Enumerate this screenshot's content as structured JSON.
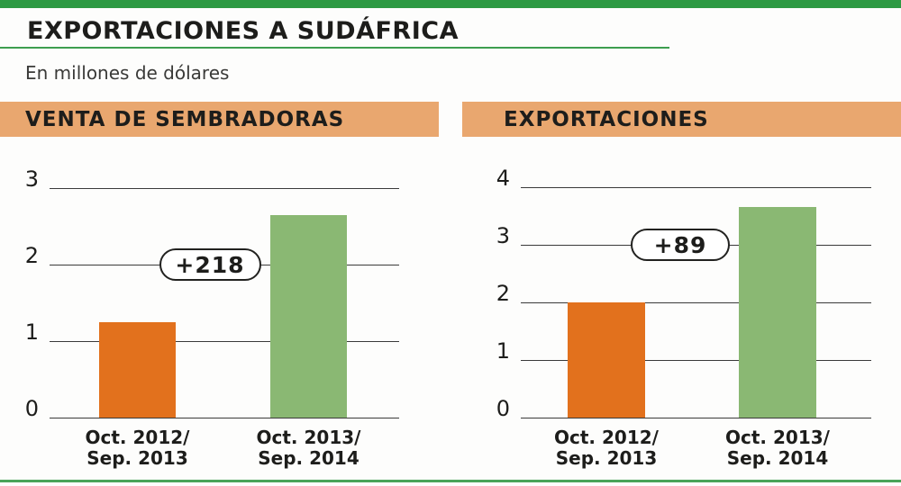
{
  "header": {
    "title": "EXPORTACIONES A SUDÁFRICA",
    "subtitle": "En millones de dólares"
  },
  "panels": [
    {
      "label": "VENTA DE SEMBRADORAS"
    },
    {
      "label": "EXPORTACIONES"
    }
  ],
  "colors": {
    "top_bar": "#2e9a44",
    "title_underline": "#3d9e4f",
    "panel_header_bg": "#e9a76f",
    "bar_orange": "#e2711d",
    "bar_green": "#8ab873",
    "gridline": "#3a3a3a",
    "text": "#1d1d1b",
    "bottom_line": "#4aa45a"
  },
  "chart_data": [
    {
      "type": "bar",
      "title": "VENTA DE SEMBRADORAS",
      "categories": [
        "Oct. 2012/Sep. 2013",
        "Oct. 2013/Sep. 2014"
      ],
      "category_lines": [
        [
          "Oct. 2012/",
          "Sep. 2013"
        ],
        [
          "Oct. 2013/",
          "Sep. 2014"
        ]
      ],
      "values": [
        1.25,
        2.65
      ],
      "bar_colors": [
        "#e2711d",
        "#8ab873"
      ],
      "annotation": {
        "label": "+218",
        "at_value": 2
      },
      "xlabel": "",
      "ylabel": "",
      "ylim": [
        0,
        3
      ],
      "yticks": [
        0,
        1,
        2,
        3
      ],
      "grid": true,
      "legend": false
    },
    {
      "type": "bar",
      "title": "EXPORTACIONES",
      "categories": [
        "Oct. 2012/Sep. 2013",
        "Oct. 2013/Sep. 2014"
      ],
      "category_lines": [
        [
          "Oct. 2012/",
          "Sep. 2013"
        ],
        [
          "Oct. 2013/",
          "Sep. 2014"
        ]
      ],
      "values": [
        2.0,
        3.65
      ],
      "bar_colors": [
        "#e2711d",
        "#8ab873"
      ],
      "annotation": {
        "label": "+89",
        "at_value": 3
      },
      "xlabel": "",
      "ylabel": "",
      "ylim": [
        0,
        4
      ],
      "yticks": [
        0,
        1,
        2,
        3,
        4
      ],
      "grid": true,
      "legend": false
    }
  ]
}
